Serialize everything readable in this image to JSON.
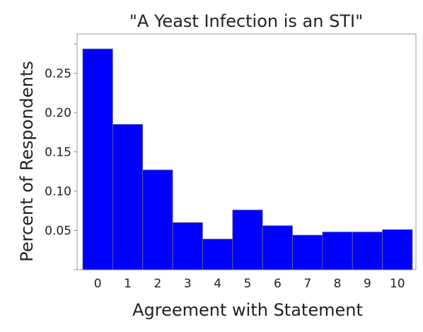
{
  "chart_data": {
    "type": "bar",
    "title": "\"A Yeast Infection is an STI\"",
    "xlabel": "Agreement with Statement",
    "ylabel": "Percent of Respondents",
    "categories": [
      "0",
      "1",
      "2",
      "3",
      "4",
      "5",
      "6",
      "7",
      "8",
      "9",
      "10"
    ],
    "values": [
      0.281,
      0.185,
      0.127,
      0.06,
      0.039,
      0.076,
      0.056,
      0.044,
      0.048,
      0.048,
      0.051
    ],
    "ylim": [
      0,
      0.3
    ],
    "yticks": [
      0.05,
      0.1,
      0.15,
      0.2,
      0.25
    ],
    "ytick_labels": [
      "0.05",
      "0.10",
      "0.15",
      "0.20",
      "0.25"
    ],
    "bar_color": "#0000ff",
    "grid": false,
    "legend": "none"
  }
}
